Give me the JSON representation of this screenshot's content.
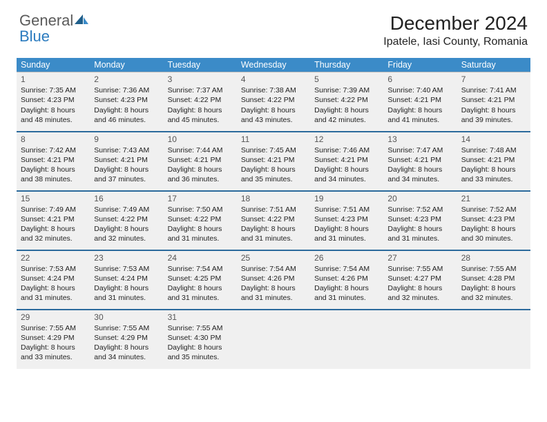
{
  "brand": {
    "part1": "General",
    "part2": "Blue"
  },
  "title": "December 2024",
  "location": "Ipatele, Iasi County, Romania",
  "colors": {
    "header_bg": "#3b8bc8",
    "header_text": "#ffffff",
    "cell_bg": "#f0f0f0",
    "row_divider": "#2b6a9c",
    "logo_gray": "#5a5a5a",
    "logo_blue": "#2b7bbf",
    "text": "#222222"
  },
  "typography": {
    "title_fontsize": 28,
    "location_fontsize": 16,
    "dayhead_fontsize": 12.5,
    "cell_fontsize": 10.5,
    "daynum_fontsize": 12
  },
  "day_headers": [
    "Sunday",
    "Monday",
    "Tuesday",
    "Wednesday",
    "Thursday",
    "Friday",
    "Saturday"
  ],
  "weeks": [
    [
      {
        "num": "1",
        "sunrise": "7:35 AM",
        "sunset": "4:23 PM",
        "daylight": "8 hours and 48 minutes."
      },
      {
        "num": "2",
        "sunrise": "7:36 AM",
        "sunset": "4:23 PM",
        "daylight": "8 hours and 46 minutes."
      },
      {
        "num": "3",
        "sunrise": "7:37 AM",
        "sunset": "4:22 PM",
        "daylight": "8 hours and 45 minutes."
      },
      {
        "num": "4",
        "sunrise": "7:38 AM",
        "sunset": "4:22 PM",
        "daylight": "8 hours and 43 minutes."
      },
      {
        "num": "5",
        "sunrise": "7:39 AM",
        "sunset": "4:22 PM",
        "daylight": "8 hours and 42 minutes."
      },
      {
        "num": "6",
        "sunrise": "7:40 AM",
        "sunset": "4:21 PM",
        "daylight": "8 hours and 41 minutes."
      },
      {
        "num": "7",
        "sunrise": "7:41 AM",
        "sunset": "4:21 PM",
        "daylight": "8 hours and 39 minutes."
      }
    ],
    [
      {
        "num": "8",
        "sunrise": "7:42 AM",
        "sunset": "4:21 PM",
        "daylight": "8 hours and 38 minutes."
      },
      {
        "num": "9",
        "sunrise": "7:43 AM",
        "sunset": "4:21 PM",
        "daylight": "8 hours and 37 minutes."
      },
      {
        "num": "10",
        "sunrise": "7:44 AM",
        "sunset": "4:21 PM",
        "daylight": "8 hours and 36 minutes."
      },
      {
        "num": "11",
        "sunrise": "7:45 AM",
        "sunset": "4:21 PM",
        "daylight": "8 hours and 35 minutes."
      },
      {
        "num": "12",
        "sunrise": "7:46 AM",
        "sunset": "4:21 PM",
        "daylight": "8 hours and 34 minutes."
      },
      {
        "num": "13",
        "sunrise": "7:47 AM",
        "sunset": "4:21 PM",
        "daylight": "8 hours and 34 minutes."
      },
      {
        "num": "14",
        "sunrise": "7:48 AM",
        "sunset": "4:21 PM",
        "daylight": "8 hours and 33 minutes."
      }
    ],
    [
      {
        "num": "15",
        "sunrise": "7:49 AM",
        "sunset": "4:21 PM",
        "daylight": "8 hours and 32 minutes."
      },
      {
        "num": "16",
        "sunrise": "7:49 AM",
        "sunset": "4:22 PM",
        "daylight": "8 hours and 32 minutes."
      },
      {
        "num": "17",
        "sunrise": "7:50 AM",
        "sunset": "4:22 PM",
        "daylight": "8 hours and 31 minutes."
      },
      {
        "num": "18",
        "sunrise": "7:51 AM",
        "sunset": "4:22 PM",
        "daylight": "8 hours and 31 minutes."
      },
      {
        "num": "19",
        "sunrise": "7:51 AM",
        "sunset": "4:23 PM",
        "daylight": "8 hours and 31 minutes."
      },
      {
        "num": "20",
        "sunrise": "7:52 AM",
        "sunset": "4:23 PM",
        "daylight": "8 hours and 31 minutes."
      },
      {
        "num": "21",
        "sunrise": "7:52 AM",
        "sunset": "4:23 PM",
        "daylight": "8 hours and 30 minutes."
      }
    ],
    [
      {
        "num": "22",
        "sunrise": "7:53 AM",
        "sunset": "4:24 PM",
        "daylight": "8 hours and 31 minutes."
      },
      {
        "num": "23",
        "sunrise": "7:53 AM",
        "sunset": "4:24 PM",
        "daylight": "8 hours and 31 minutes."
      },
      {
        "num": "24",
        "sunrise": "7:54 AM",
        "sunset": "4:25 PM",
        "daylight": "8 hours and 31 minutes."
      },
      {
        "num": "25",
        "sunrise": "7:54 AM",
        "sunset": "4:26 PM",
        "daylight": "8 hours and 31 minutes."
      },
      {
        "num": "26",
        "sunrise": "7:54 AM",
        "sunset": "4:26 PM",
        "daylight": "8 hours and 31 minutes."
      },
      {
        "num": "27",
        "sunrise": "7:55 AM",
        "sunset": "4:27 PM",
        "daylight": "8 hours and 32 minutes."
      },
      {
        "num": "28",
        "sunrise": "7:55 AM",
        "sunset": "4:28 PM",
        "daylight": "8 hours and 32 minutes."
      }
    ],
    [
      {
        "num": "29",
        "sunrise": "7:55 AM",
        "sunset": "4:29 PM",
        "daylight": "8 hours and 33 minutes."
      },
      {
        "num": "30",
        "sunrise": "7:55 AM",
        "sunset": "4:29 PM",
        "daylight": "8 hours and 34 minutes."
      },
      {
        "num": "31",
        "sunrise": "7:55 AM",
        "sunset": "4:30 PM",
        "daylight": "8 hours and 35 minutes."
      },
      null,
      null,
      null,
      null
    ]
  ],
  "labels": {
    "sunrise": "Sunrise:",
    "sunset": "Sunset:",
    "daylight": "Daylight:"
  }
}
